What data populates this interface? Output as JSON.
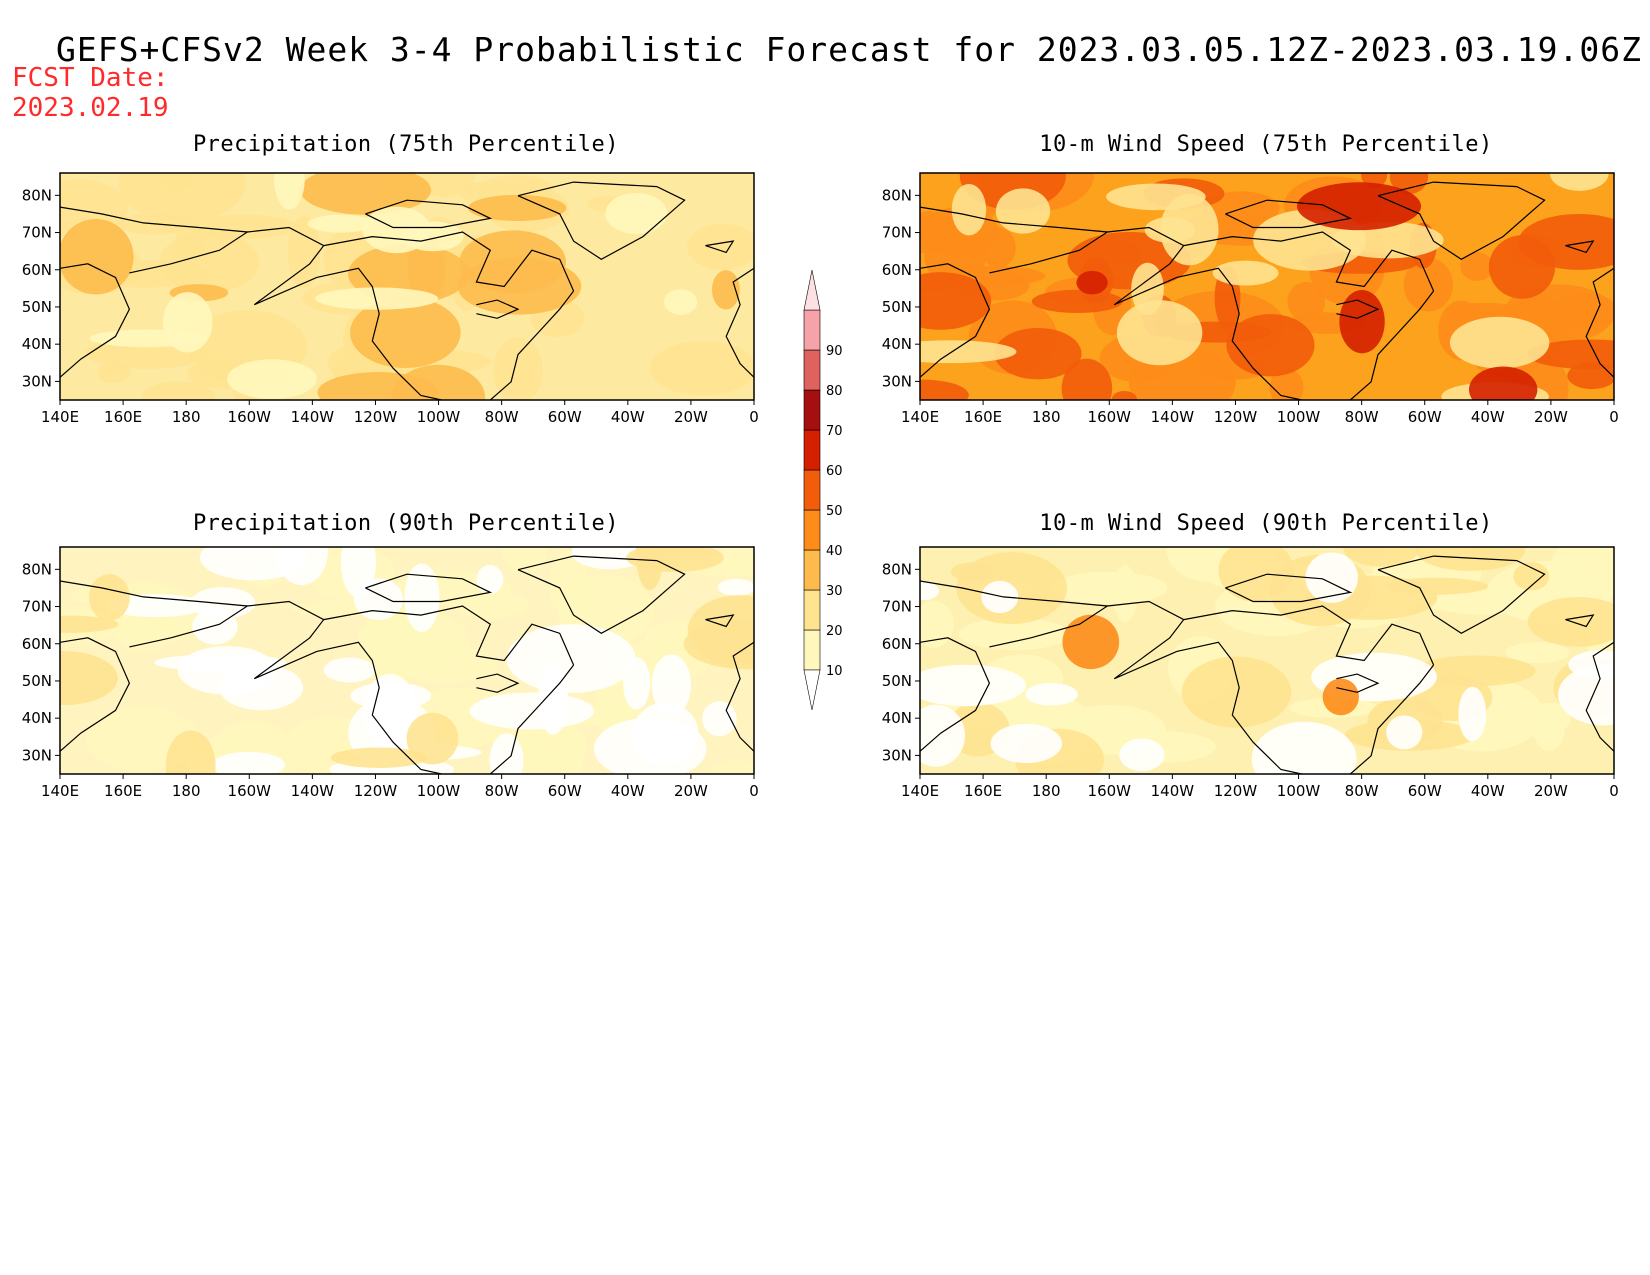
{
  "title": "GEFS+CFSv2 Week 3-4 Probabilistic Forecast for 2023.03.05.12Z-2023.03.19.06Z",
  "fcst_label": "FCST Date:",
  "fcst_date": "2023.02.19",
  "lon_ticks": [
    "140E",
    "160E",
    "180",
    "160W",
    "140W",
    "120W",
    "100W",
    "80W",
    "60W",
    "40W",
    "20W",
    "0"
  ],
  "lat_ticks": [
    "80N",
    "70N",
    "60N",
    "50N",
    "40N",
    "30N"
  ],
  "colorbar": {
    "levels": [
      "10",
      "20",
      "30",
      "40",
      "50",
      "60",
      "70",
      "80",
      "90"
    ],
    "colors": [
      "#fff7bc",
      "#fee391",
      "#fdbb4d",
      "#fd8c1a",
      "#f25c0a",
      "#d42000",
      "#a50f0f",
      "#e0625e",
      "#f5a3a8",
      "#fde0e4"
    ]
  },
  "panels": [
    {
      "title": "Precipitation (75th Percentile)",
      "base_color": "#fee9a0"
    },
    {
      "title": "10-m Wind Speed (75th Percentile)",
      "base_color": "#fda21c"
    },
    {
      "title": "Precipitation (90th Percentile)",
      "base_color": "#fff4c0"
    },
    {
      "title": "10-m Wind Speed (90th Percentile)",
      "base_color": "#fef0b0"
    }
  ]
}
